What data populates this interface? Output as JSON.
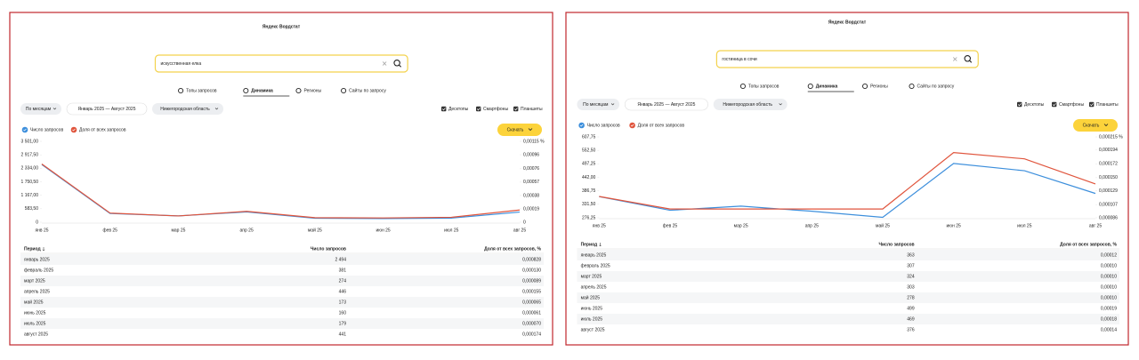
{
  "panels": [
    {
      "title": "Яндекс Вордстат",
      "query": "искусственная елка",
      "tabs": [
        "Топы запросов",
        "Динамика",
        "Регионы",
        "Сайты по запросу"
      ],
      "filters": [
        "По месяцам",
        "Январь 2025 — Август 2025",
        "Нижегородская область"
      ],
      "devices": [
        "Десктопы",
        "Смартфоны",
        "Планшеты"
      ],
      "download": "Скачать",
      "table": {
        "header": [
          "Период",
          "Число запросов",
          "Доля от всех запросов, %"
        ],
        "rows": [
          [
            "январь 2025",
            "2 494",
            "0,000828"
          ],
          [
            "февраль 2025",
            "381",
            "0,000130"
          ],
          [
            "март 2025",
            "274",
            "0,000089"
          ],
          [
            "апрель 2025",
            "446",
            "0,000155"
          ],
          [
            "май 2025",
            "173",
            "0,000065"
          ],
          [
            "июнь 2025",
            "160",
            "0,000061"
          ],
          [
            "июль 2025",
            "179",
            "0,000070"
          ],
          [
            "август 2025",
            "441",
            "0,000174"
          ]
        ]
      }
    },
    {
      "title": "Яндекс Вордстат",
      "query": "гостиница в сочи",
      "tabs": [
        "Топы запросов",
        "Динамика",
        "Регионы",
        "Сайты по запросу"
      ],
      "filters": [
        "По месяцам",
        "Январь 2025 — Август 2025",
        "Нижегородская область"
      ],
      "devices": [
        "Десктопы",
        "Смартфоны",
        "Планшеты"
      ],
      "download": "Скачать",
      "table": {
        "header": [
          "Период",
          "Число запросов",
          "Доля от всех запросов, %"
        ],
        "rows": [
          [
            "январь 2025",
            "363",
            "0,00012"
          ],
          [
            "февраль 2025",
            "307",
            "0,00010"
          ],
          [
            "март 2025",
            "324",
            "0,00010"
          ],
          [
            "апрель 2025",
            "303",
            "0,00010"
          ],
          [
            "май 2025",
            "278",
            "0,00010"
          ],
          [
            "июнь 2025",
            "499",
            "0,00019"
          ],
          [
            "июль 2025",
            "469",
            "0,00018"
          ],
          [
            "август 2025",
            "376",
            "0,00014"
          ]
        ]
      }
    }
  ],
  "chart_data": [
    {
      "type": "line",
      "categories": [
        "янв 25",
        "фев 25",
        "мар 25",
        "апр 25",
        "май 25",
        "июн 25",
        "июл 25",
        "авг 25"
      ],
      "series": [
        {
          "name": "Число запросов",
          "color": "#3d8fdc",
          "values": [
            2494,
            381,
            274,
            446,
            173,
            160,
            179,
            441
          ]
        },
        {
          "name": "Доля от всех запросов",
          "color": "#e0553d",
          "axis": "y2",
          "values": [
            0.000828,
            0.00013,
            8.9e-05,
            0.000155,
            6.5e-05,
            6.1e-05,
            7e-05,
            0.000174
          ]
        }
      ],
      "ylim": [
        0,
        3501
      ],
      "yticks": [
        0,
        {
          "value": 583.5,
          "label": "583,50"
        },
        {
          "value": 1167,
          "label": "1 167,00"
        },
        {
          "value": 1750.5,
          "label": "1 750,50"
        },
        {
          "value": 2334,
          "label": "2 334,00"
        },
        {
          "value": 2917.5,
          "label": "2 917,50"
        },
        {
          "value": 3501,
          "label": "3 501,00"
        }
      ],
      "y2lim": [
        0,
        0.00115
      ],
      "y2ticks": [
        0,
        {
          "value": 0.00019,
          "label": "0,00019"
        },
        {
          "value": 0.00038,
          "label": "0,00038"
        },
        {
          "value": 0.00057,
          "label": "0,00057"
        },
        {
          "value": 0.00076,
          "label": "0,00076"
        },
        {
          "value": 0.00096,
          "label": "0,00096"
        },
        {
          "value": 0.00115,
          "label": "0,00115 %"
        }
      ]
    },
    {
      "type": "line",
      "categories": [
        "янв 25",
        "фев 25",
        "мар 25",
        "апр 25",
        "май 25",
        "июн 25",
        "июл 25",
        "авг 25"
      ],
      "series": [
        {
          "name": "Число запросов",
          "color": "#3d8fdc",
          "values": [
            363,
            307,
            324,
            303,
            278,
            499,
            469,
            376
          ]
        },
        {
          "name": "Доля от всех запросов",
          "color": "#e0553d",
          "axis": "y2",
          "values": [
            0.00012,
            0.0001,
            0.0001,
            0.0001,
            0.0001,
            0.00019,
            0.00018,
            0.00014
          ]
        }
      ],
      "ylim": [
        276.25,
        607.75
      ],
      "yticks": [
        {
          "value": 276.25,
          "label": "276,25"
        },
        {
          "value": 331.5,
          "label": "331,50"
        },
        {
          "value": 386.75,
          "label": "386,75"
        },
        {
          "value": 442,
          "label": "442,00"
        },
        {
          "value": 497.25,
          "label": "497,25"
        },
        {
          "value": 552.5,
          "label": "552,50"
        },
        {
          "value": 607.75,
          "label": "607,75"
        }
      ],
      "y2lim": [
        8.6e-05,
        0.000215
      ],
      "y2ticks": [
        {
          "value": 8.6e-05,
          "label": "0,000086"
        },
        {
          "value": 0.000107,
          "label": "0,000107"
        },
        {
          "value": 0.000129,
          "label": "0,000129"
        },
        {
          "value": 0.00015,
          "label": "0,000150"
        },
        {
          "value": 0.000172,
          "label": "0,000172"
        },
        {
          "value": 0.000194,
          "label": "0,000194"
        },
        {
          "value": 0.000215,
          "label": "0,000215 %"
        }
      ]
    }
  ]
}
